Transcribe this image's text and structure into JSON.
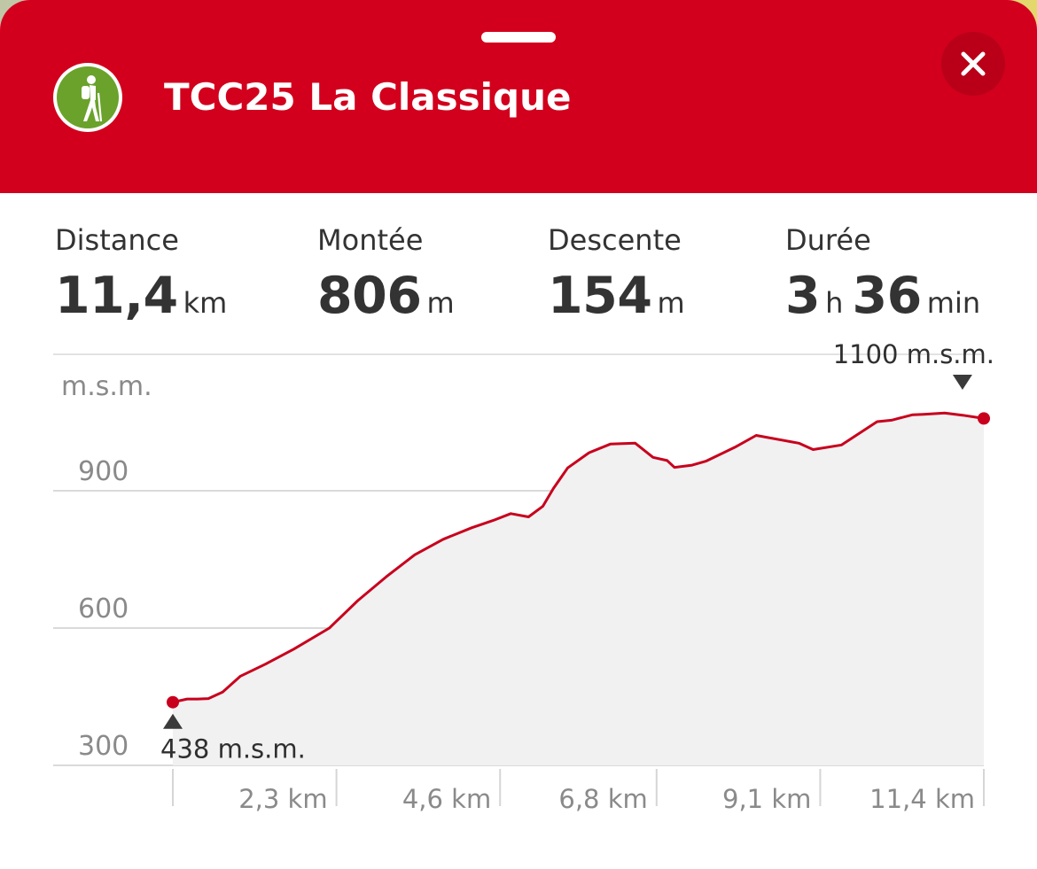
{
  "header": {
    "title": "TCC25 La Classique",
    "activity_icon": "hiking-icon",
    "close_icon": "close-icon",
    "color": "#d2001d"
  },
  "stats": {
    "distance": {
      "label": "Distance",
      "value": "11,4",
      "unit": "km"
    },
    "ascent": {
      "label": "Montée",
      "value": "806",
      "unit": "m"
    },
    "descent": {
      "label": "Descente",
      "value": "154",
      "unit": "m"
    },
    "duration": {
      "label": "Durée",
      "hours": "3",
      "hours_unit": "h",
      "minutes": "36",
      "minutes_unit": "min"
    }
  },
  "chart_data": {
    "type": "area",
    "ylabel": "m.s.m.",
    "ylim": [
      300,
      1100
    ],
    "yticks": [
      300,
      600,
      900
    ],
    "ytick_labels": [
      "300",
      "600",
      "900"
    ],
    "xlim": [
      0,
      11.4
    ],
    "xticks": [
      0,
      2.3,
      4.6,
      6.8,
      9.1,
      11.4
    ],
    "xtick_labels": [
      "",
      "2,3 km",
      "4,6 km",
      "6,8 km",
      "9,1 km",
      "11,4 km"
    ],
    "line_color": "#c8001d",
    "fill_color": "#f1f1f2",
    "grid": true,
    "x": [
      0,
      0.2,
      0.35,
      0.5,
      0.7,
      0.95,
      1.3,
      1.7,
      2.2,
      2.6,
      3.0,
      3.4,
      3.8,
      4.2,
      4.5,
      4.75,
      5.0,
      5.2,
      5.35,
      5.55,
      5.85,
      6.15,
      6.5,
      6.75,
      6.95,
      7.05,
      7.3,
      7.5,
      7.9,
      8.2,
      8.8,
      9.0,
      9.4,
      9.9,
      10.1,
      10.4,
      10.55,
      10.85,
      11.1,
      11.4
    ],
    "y": [
      438,
      445,
      445,
      446,
      460,
      495,
      521,
      554,
      600,
      660,
      712,
      760,
      794,
      819,
      835,
      850,
      843,
      866,
      905,
      950,
      983,
      1002,
      1004,
      973,
      966,
      951,
      956,
      965,
      995,
      1021,
      1004,
      990,
      1000,
      1051,
      1054,
      1066,
      1067,
      1070,
      1065,
      1058
    ],
    "start_marker": {
      "x": 0,
      "y": 438,
      "label_value": "438",
      "label_unit": "m.s.m."
    },
    "max_marker": {
      "x": 11.1,
      "y": 1100,
      "label_value": "1100",
      "label_unit": "m.s.m."
    }
  }
}
